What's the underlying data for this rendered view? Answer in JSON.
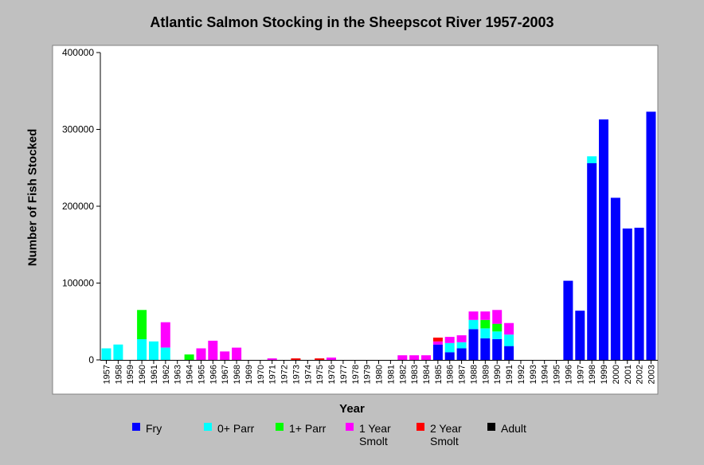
{
  "chart_data": {
    "type": "bar",
    "stacked": true,
    "title": "Atlantic Salmon Stocking in the Sheepscot River 1957-2003",
    "xlabel": "Year",
    "ylabel": "Number of Fish Stocked",
    "ylim": [
      0,
      400000
    ],
    "yticks": [
      "0",
      "100000",
      "200000",
      "300000",
      "400000"
    ],
    "grid": false,
    "legend_position": "bottom",
    "categories": [
      "1957",
      "1958",
      "1959",
      "1960",
      "1961",
      "1962",
      "1963",
      "1964",
      "1965",
      "1966",
      "1967",
      "1968",
      "1969",
      "1970",
      "1971",
      "1972",
      "1973",
      "1974",
      "1975",
      "1976",
      "1977",
      "1978",
      "1979",
      "1980",
      "1981",
      "1982",
      "1983",
      "1984",
      "1985",
      "1986",
      "1987",
      "1988",
      "1989",
      "1990",
      "1991",
      "1992",
      "1993",
      "1994",
      "1995",
      "1996",
      "1997",
      "1998",
      "1999",
      "2000",
      "2001",
      "2002",
      "2003"
    ],
    "series": [
      {
        "name": "Fry",
        "color": "#0000ff",
        "values": [
          0,
          0,
          0,
          0,
          0,
          0,
          0,
          0,
          0,
          0,
          0,
          0,
          0,
          0,
          0,
          0,
          0,
          0,
          0,
          0,
          0,
          0,
          0,
          0,
          0,
          0,
          0,
          0,
          20000,
          10000,
          15000,
          40000,
          28000,
          27000,
          18000,
          0,
          0,
          0,
          0,
          103000,
          64000,
          256000,
          313000,
          211000,
          171000,
          172000,
          323000
        ]
      },
      {
        "name": "0+ Parr",
        "color": "#00ffff",
        "values": [
          15000,
          20000,
          0,
          27000,
          24000,
          16000,
          0,
          0,
          0,
          0,
          0,
          0,
          0,
          0,
          0,
          0,
          0,
          0,
          0,
          0,
          0,
          0,
          0,
          0,
          0,
          0,
          0,
          0,
          0,
          12000,
          8000,
          12000,
          13000,
          10000,
          15000,
          0,
          0,
          0,
          0,
          0,
          0,
          9000,
          0,
          0,
          0,
          0,
          0
        ]
      },
      {
        "name": "1+ Parr",
        "color": "#00ff00",
        "values": [
          0,
          0,
          0,
          38000,
          0,
          0,
          0,
          7000,
          0,
          0,
          0,
          0,
          0,
          0,
          0,
          0,
          0,
          0,
          0,
          0,
          0,
          0,
          0,
          0,
          0,
          0,
          0,
          0,
          0,
          0,
          0,
          0,
          11000,
          10000,
          0,
          0,
          0,
          0,
          0,
          0,
          0,
          0,
          0,
          0,
          0,
          0,
          0
        ]
      },
      {
        "name": "1 Year Smolt",
        "color": "#ff00ff",
        "values": [
          0,
          0,
          0,
          0,
          0,
          33000,
          0,
          0,
          15000,
          25000,
          11000,
          16000,
          0,
          0,
          2000,
          0,
          0,
          0,
          0,
          3000,
          0,
          0,
          0,
          0,
          0,
          6000,
          6000,
          6000,
          4000,
          8000,
          9000,
          11000,
          11000,
          18000,
          15000,
          0,
          0,
          0,
          0,
          0,
          0,
          0,
          0,
          0,
          0,
          0,
          0
        ]
      },
      {
        "name": "2 Year Smolt",
        "color": "#ff0000",
        "values": [
          0,
          0,
          0,
          0,
          0,
          0,
          0,
          0,
          0,
          0,
          0,
          0,
          0,
          0,
          0,
          0,
          2000,
          0,
          2000,
          0,
          0,
          0,
          0,
          0,
          0,
          0,
          0,
          0,
          5000,
          0,
          0,
          0,
          0,
          0,
          0,
          0,
          0,
          0,
          0,
          0,
          0,
          0,
          0,
          0,
          0,
          0,
          0
        ]
      },
      {
        "name": "Adult",
        "color": "#000000",
        "values": [
          0,
          0,
          0,
          0,
          0,
          0,
          0,
          0,
          0,
          0,
          0,
          0,
          0,
          0,
          0,
          0,
          0,
          0,
          0,
          0,
          0,
          0,
          0,
          0,
          0,
          0,
          0,
          0,
          0,
          0,
          0,
          0,
          0,
          0,
          0,
          0,
          0,
          0,
          0,
          0,
          0,
          0,
          0,
          0,
          0,
          0,
          0
        ]
      }
    ],
    "legend": [
      {
        "line1": "Fry",
        "line2": ""
      },
      {
        "line1": "0+ Parr",
        "line2": ""
      },
      {
        "line1": "1+ Parr",
        "line2": ""
      },
      {
        "line1": "1 Year",
        "line2": "Smolt"
      },
      {
        "line1": "2 Year",
        "line2": "Smolt"
      },
      {
        "line1": "Adult",
        "line2": ""
      }
    ]
  }
}
